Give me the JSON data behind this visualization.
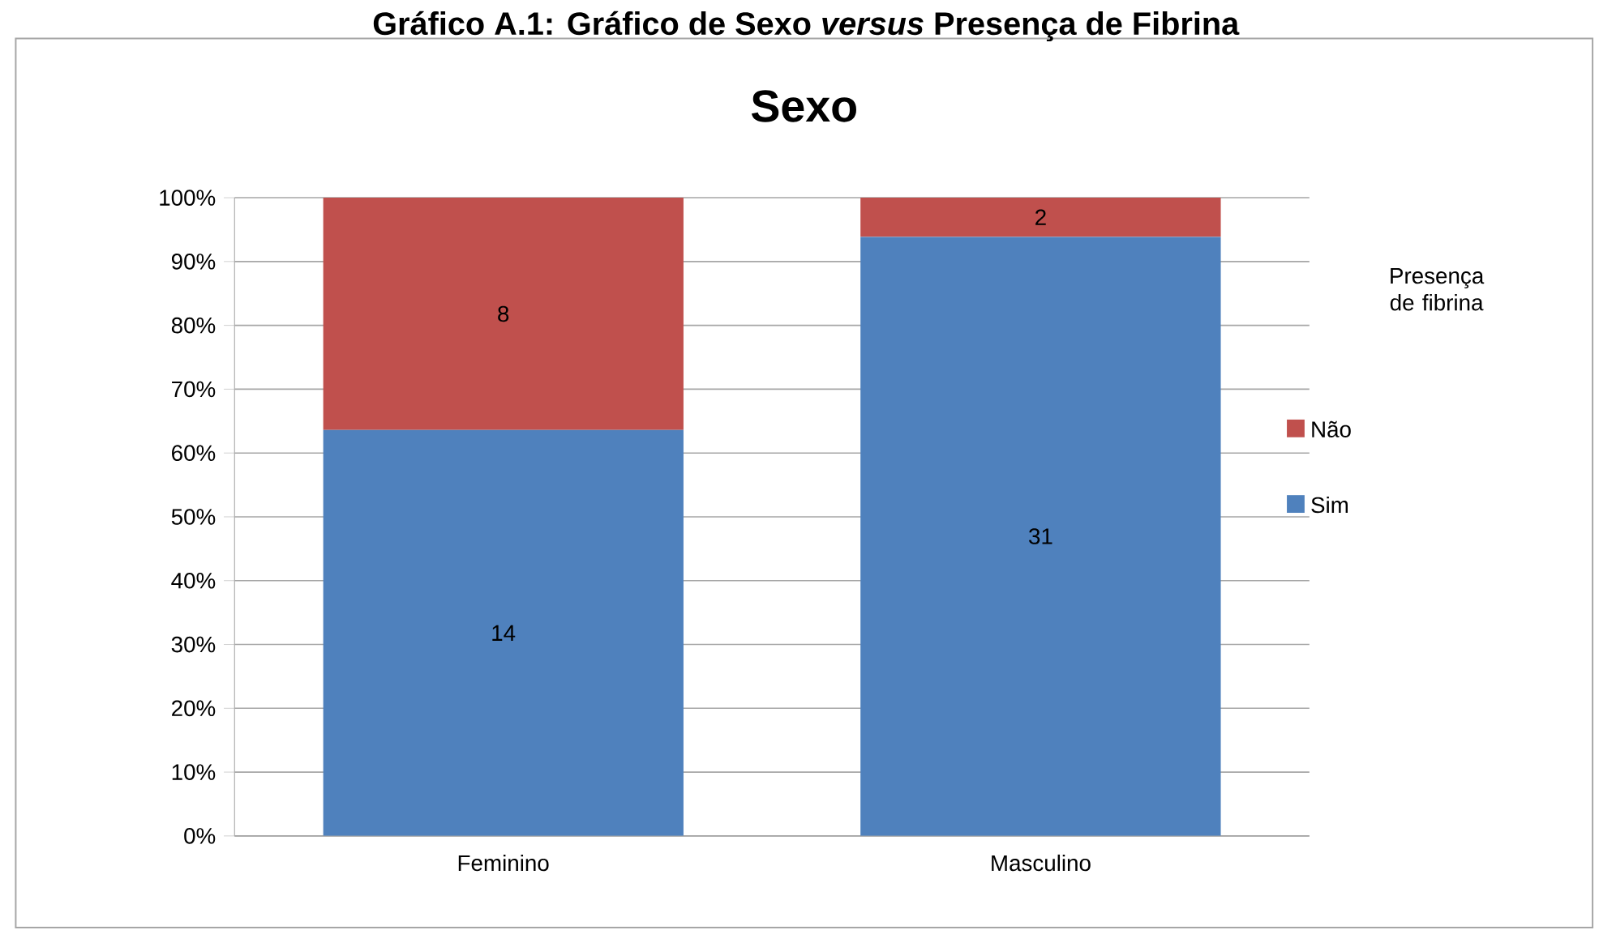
{
  "chart_data": {
    "type": "bar",
    "title": "Gráfico A.1: Gráfico de Sexo *versus* Presença de Fibrina",
    "subtitle": "Sexo",
    "categories": [
      "Feminino",
      "Masculino"
    ],
    "stacked": true,
    "series": [
      {
        "name": "Sim",
        "color": "#4f81bd",
        "values": [
          63.6,
          93.9
        ]
      },
      {
        "name": "Não",
        "color": "#c0504d",
        "values": [
          36.4,
          6.1
        ]
      }
    ],
    "annotations": [
      "14",
      "31",
      "8",
      "2"
    ],
    "legend_title": "Presença de fibrina",
    "legend": "right",
    "grid": "y",
    "ylim": [
      0,
      100
    ],
    "yticks": [
      {
        "value": 0,
        "label": "0%"
      },
      {
        "value": 10,
        "label": "10%"
      },
      {
        "value": 20,
        "label": "20%"
      },
      {
        "value": 30,
        "label": "30%"
      },
      {
        "value": 40,
        "label": "40%"
      },
      {
        "value": 50,
        "label": "50%"
      },
      {
        "value": 60,
        "label": "60%"
      },
      {
        "value": 70,
        "label": "70%"
      },
      {
        "value": 80,
        "label": "80%"
      },
      {
        "value": 90,
        "label": "90%"
      },
      {
        "value": 100,
        "label": "100%"
      }
    ]
  }
}
